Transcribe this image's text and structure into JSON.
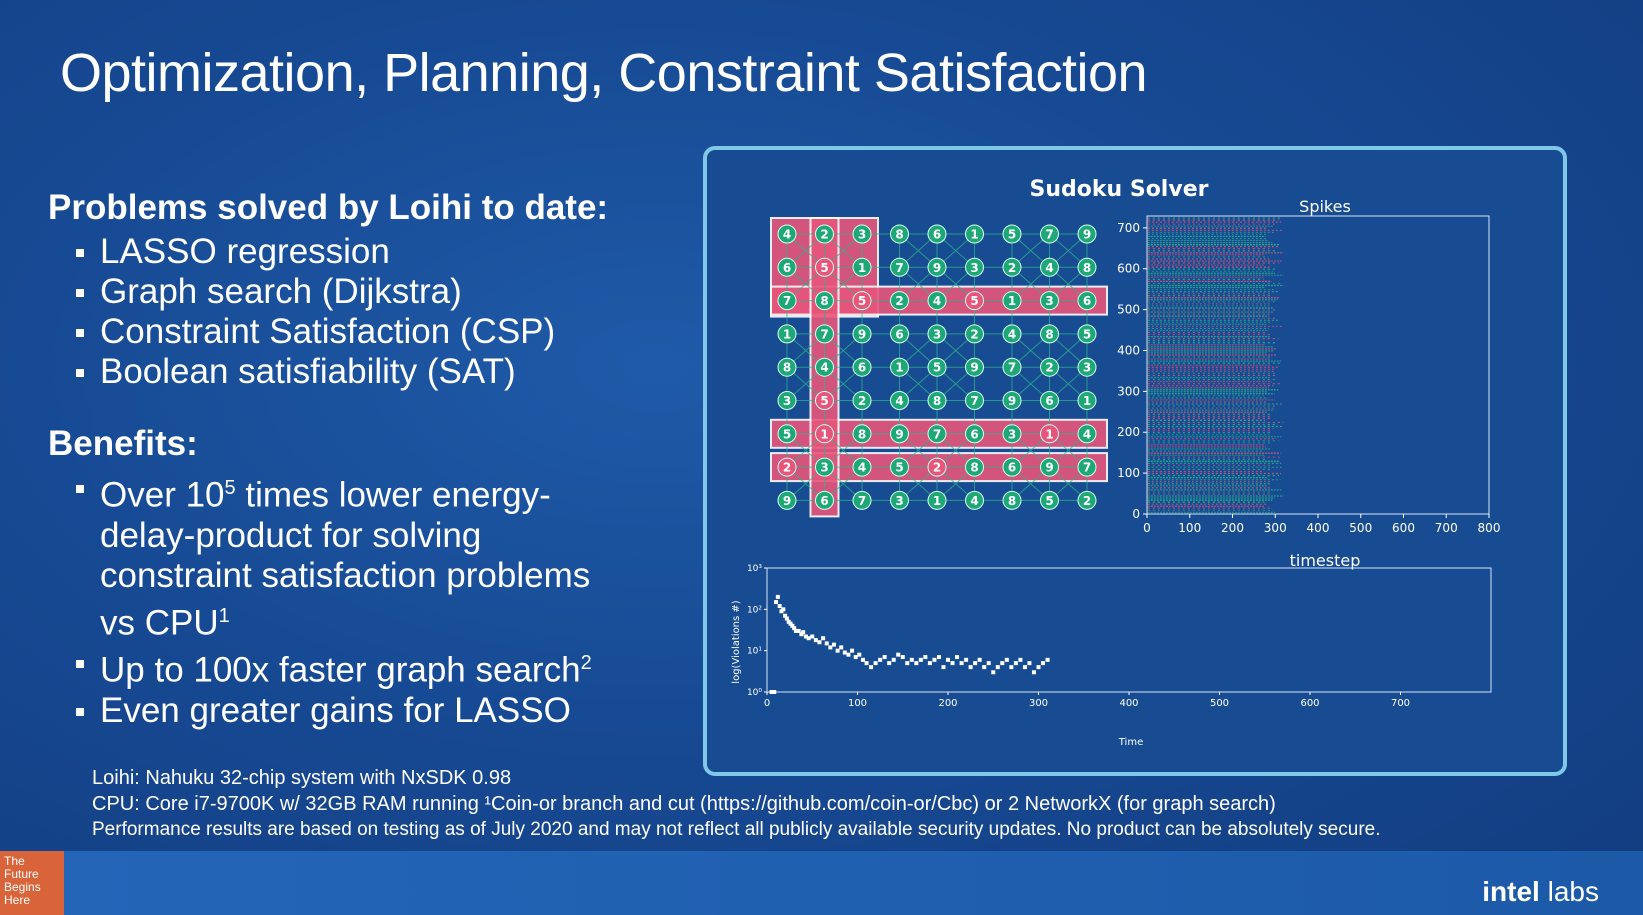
{
  "title": "Optimization, Planning, Constraint Satisfaction",
  "problems": {
    "heading": "Problems solved by Loihi to date:",
    "items": [
      "LASSO regression",
      "Graph search (Dijkstra)",
      "Constraint Satisfaction (CSP)",
      "Boolean satisfiability (SAT)"
    ]
  },
  "benefits": {
    "heading": "Benefits:",
    "item1_pre": "Over 10",
    "item1_sup": "5",
    "item1_post": " times lower energy-delay-product for solving constraint satisfaction problems vs CPU",
    "item1_fn": "1",
    "item2_text": "Up to 100x faster graph search",
    "item2_fn": "2",
    "item3_text": "Even greater gains for LASSO"
  },
  "footnotes": {
    "line1": "Loihi: Nahuku 32-chip system with NxSDK 0.98",
    "line2": "CPU: Core i7-9700K w/ 32GB RAM running ¹Coin-or branch and cut (https://github.com/coin-or/Cbc) or 2 NetworkX (for graph search)",
    "line3": "Performance results are based on testing as of July 2020 and may not reflect all publicly available security updates. No product can be absolutely secure."
  },
  "panel": {
    "title": "Sudoku Solver",
    "spikes_title": "Spikes",
    "spikes_xlabel": "timestep",
    "violations_ylabel": "log(Violations #)",
    "violations_xlabel": "Time"
  },
  "sudoku": {
    "grid": [
      [
        4,
        2,
        3,
        8,
        6,
        1,
        5,
        7,
        9
      ],
      [
        6,
        5,
        1,
        7,
        9,
        3,
        2,
        4,
        8
      ],
      [
        7,
        8,
        5,
        2,
        4,
        5,
        1,
        3,
        6
      ],
      [
        1,
        7,
        9,
        6,
        3,
        2,
        4,
        8,
        5
      ],
      [
        8,
        4,
        6,
        1,
        5,
        9,
        7,
        2,
        3
      ],
      [
        3,
        5,
        2,
        4,
        8,
        7,
        9,
        6,
        1
      ],
      [
        5,
        1,
        8,
        9,
        7,
        6,
        3,
        1,
        4
      ],
      [
        2,
        3,
        4,
        5,
        2,
        8,
        6,
        9,
        7
      ],
      [
        9,
        6,
        7,
        3,
        1,
        4,
        8,
        5,
        2
      ]
    ],
    "conflicts": [
      [
        0,
        0
      ],
      [
        0,
        1
      ],
      [
        0,
        2
      ],
      [
        1,
        0
      ],
      [
        1,
        1
      ],
      [
        1,
        2
      ],
      [
        2,
        0
      ],
      [
        2,
        1
      ],
      [
        2,
        2
      ],
      [
        2,
        3
      ],
      [
        2,
        4
      ],
      [
        2,
        5
      ],
      [
        2,
        6
      ],
      [
        2,
        7
      ],
      [
        2,
        8
      ],
      [
        3,
        1
      ],
      [
        4,
        1
      ],
      [
        5,
        1
      ],
      [
        6,
        0
      ],
      [
        6,
        1
      ],
      [
        6,
        2
      ],
      [
        6,
        3
      ],
      [
        6,
        4
      ],
      [
        6,
        5
      ],
      [
        6,
        6
      ],
      [
        6,
        7
      ],
      [
        6,
        8
      ],
      [
        7,
        0
      ],
      [
        7,
        1
      ],
      [
        7,
        2
      ],
      [
        7,
        3
      ],
      [
        7,
        4
      ],
      [
        7,
        5
      ],
      [
        7,
        6
      ],
      [
        7,
        7
      ],
      [
        7,
        8
      ],
      [
        8,
        1
      ]
    ],
    "highlight_cells": [
      [
        1,
        1
      ],
      [
        2,
        2
      ],
      [
        2,
        5
      ],
      [
        5,
        1
      ],
      [
        6,
        1
      ],
      [
        6,
        7
      ],
      [
        7,
        0
      ],
      [
        7,
        4
      ]
    ]
  },
  "chart_data": [
    {
      "type": "scatter",
      "title": "Spikes",
      "xlabel": "timestep",
      "ylabel": "",
      "xlim": [
        0,
        800
      ],
      "ylim": [
        0,
        729
      ],
      "xticks": [
        0,
        100,
        200,
        300,
        400,
        500,
        600,
        700,
        800
      ],
      "yticks": [
        0,
        100,
        200,
        300,
        400,
        500,
        600,
        700
      ],
      "spike_end": 320,
      "colors": [
        "#2ab58a",
        "#e0547a"
      ]
    },
    {
      "type": "scatter",
      "title": "",
      "xlabel": "Time",
      "ylabel": "log(Violations #)",
      "xlim": [
        0,
        800
      ],
      "ylim": [
        1,
        1000
      ],
      "log_y": true,
      "xticks": [
        0,
        100,
        200,
        300,
        400,
        500,
        600,
        700
      ],
      "yticks": [
        "10⁰",
        "10¹",
        "10²",
        "10³"
      ],
      "x": [
        5,
        8,
        10,
        12,
        14,
        16,
        18,
        20,
        22,
        24,
        26,
        28,
        30,
        32,
        35,
        38,
        40,
        43,
        46,
        50,
        54,
        58,
        62,
        66,
        70,
        74,
        78,
        82,
        86,
        90,
        94,
        98,
        102,
        106,
        110,
        115,
        120,
        125,
        130,
        135,
        140,
        145,
        150,
        155,
        160,
        165,
        170,
        175,
        180,
        185,
        190,
        195,
        200,
        205,
        210,
        215,
        220,
        225,
        230,
        235,
        240,
        245,
        250,
        255,
        260,
        265,
        270,
        275,
        280,
        285,
        290,
        295,
        300,
        305,
        310
      ],
      "y": [
        1,
        1,
        150,
        200,
        120,
        90,
        100,
        70,
        60,
        50,
        45,
        40,
        35,
        30,
        30,
        25,
        28,
        22,
        20,
        22,
        18,
        16,
        20,
        15,
        12,
        14,
        10,
        12,
        9,
        8,
        10,
        7,
        8,
        6,
        5,
        4,
        5,
        6,
        7,
        5,
        6,
        8,
        7,
        5,
        6,
        5,
        6,
        7,
        5,
        6,
        7,
        4,
        6,
        5,
        7,
        5,
        6,
        4,
        5,
        6,
        4,
        5,
        3,
        4,
        5,
        6,
        4,
        5,
        6,
        4,
        5,
        3,
        4,
        5,
        6
      ],
      "color": "#ffffff"
    }
  ],
  "branding": {
    "badge": "The Future Begins Here",
    "logo_intel": "intel",
    "logo_labs": "labs"
  }
}
